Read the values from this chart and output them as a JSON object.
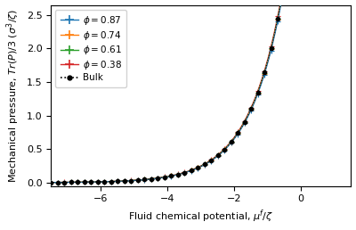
{
  "title": "",
  "xlabel": "Fluid chemical potential, $\\mu^f/\\zeta$",
  "ylabel": "Mechanical pressure, $Tr(P)/3$ ($\\sigma^3/\\zeta$)",
  "xlim": [
    -7.5,
    1.5
  ],
  "ylim": [
    -0.05,
    2.65
  ],
  "xticks": [
    -6,
    -4,
    -2,
    0
  ],
  "yticks": [
    0.0,
    0.5,
    1.0,
    1.5,
    2.0,
    2.5
  ],
  "series": [
    {
      "label": "$\\phi = 0.87$",
      "color": "#1f77b4",
      "zorder": 5,
      "phi": 0.87
    },
    {
      "label": "$\\phi = 0.74$",
      "color": "#ff7f0e",
      "zorder": 4,
      "phi": 0.74
    },
    {
      "label": "$\\phi = 0.61$",
      "color": "#2ca02c",
      "zorder": 3,
      "phi": 0.61
    },
    {
      "label": "$\\phi = 0.38$",
      "color": "#d62728",
      "zorder": 2,
      "phi": 0.38
    }
  ],
  "bulk": {
    "label": "Bulk",
    "color": "black",
    "zorder": 6
  },
  "markersize_plus": 5,
  "markersize_dot": 3,
  "linewidth": 0.8,
  "background_color": "#ffffff",
  "legend_fontsize": 7.5,
  "axis_fontsize": 8,
  "tick_fontsize": 8,
  "n_line": 300,
  "n_markers": 45,
  "mu_min": -7.5,
  "mu_max": 1.3,
  "curve_scale": 1.1,
  "curve_shift": 1.5
}
